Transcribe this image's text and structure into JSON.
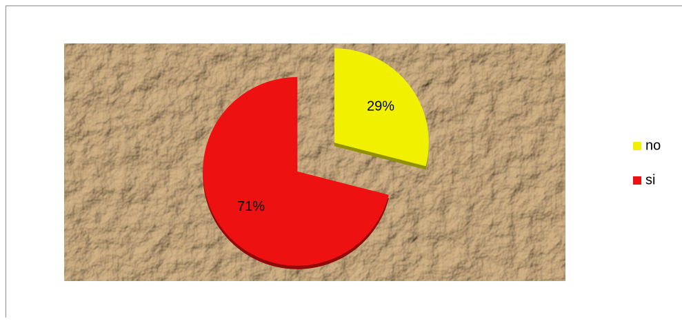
{
  "chart_data": {
    "type": "pie",
    "categories": [
      "no",
      "si"
    ],
    "values": [
      29,
      71
    ],
    "value_labels": [
      "29%",
      "71%"
    ],
    "colors": [
      "#f0f000",
      "#ee1111"
    ],
    "exploded": true,
    "legend": "right"
  }
}
